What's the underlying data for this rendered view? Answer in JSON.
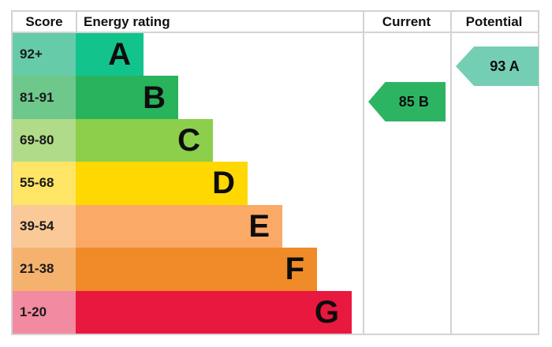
{
  "header": {
    "score": "Score",
    "energy_rating": "Energy rating",
    "current": "Current",
    "potential": "Potential"
  },
  "bands": [
    {
      "score": "92+",
      "letter": "A",
      "color": "#13c38c",
      "tint": "#66cba9"
    },
    {
      "score": "81-91",
      "letter": "B",
      "color": "#29b35c",
      "tint": "#6ec78b"
    },
    {
      "score": "69-80",
      "letter": "C",
      "color": "#8ccf4b",
      "tint": "#b0db89"
    },
    {
      "score": "55-68",
      "letter": "D",
      "color": "#fed800",
      "tint": "#ffe566"
    },
    {
      "score": "39-54",
      "letter": "E",
      "color": "#faa966",
      "tint": "#fbc997"
    },
    {
      "score": "21-38",
      "letter": "F",
      "color": "#ef8b28",
      "tint": "#f5b26e"
    },
    {
      "score": "1-20",
      "letter": "G",
      "color": "#e9183f",
      "tint": "#f28aa1"
    }
  ],
  "current": {
    "label": "85 B",
    "value": 85,
    "band": "B",
    "color": "#2db463"
  },
  "potential": {
    "label": "93 A",
    "value": 93,
    "band": "A",
    "color": "#74ceb3"
  },
  "chart_data": {
    "type": "bar",
    "title": "",
    "columns": [
      "Score",
      "Energy rating",
      "Current",
      "Potential"
    ],
    "categories": [
      "A",
      "B",
      "C",
      "D",
      "E",
      "F",
      "G"
    ],
    "score_ranges": [
      "92+",
      "81-91",
      "69-80",
      "55-68",
      "39-54",
      "21-38",
      "1-20"
    ],
    "series": [
      {
        "name": "band-bar-length-px",
        "values": [
          86,
          130,
          174,
          218,
          262,
          306,
          350
        ]
      }
    ],
    "band_colors": [
      "#13c38c",
      "#29b35c",
      "#8ccf4b",
      "#fed800",
      "#faa966",
      "#ef8b28",
      "#e9183f"
    ],
    "score_tint_colors": [
      "#66cba9",
      "#6ec78b",
      "#b0db89",
      "#ffe566",
      "#fbc997",
      "#f5b26e",
      "#f28aa1"
    ],
    "current": {
      "value": 85,
      "band": "B",
      "arrow_color": "#2db463"
    },
    "potential": {
      "value": 93,
      "band": "A",
      "arrow_color": "#74ceb3"
    },
    "legend": "none",
    "grid": "off"
  }
}
